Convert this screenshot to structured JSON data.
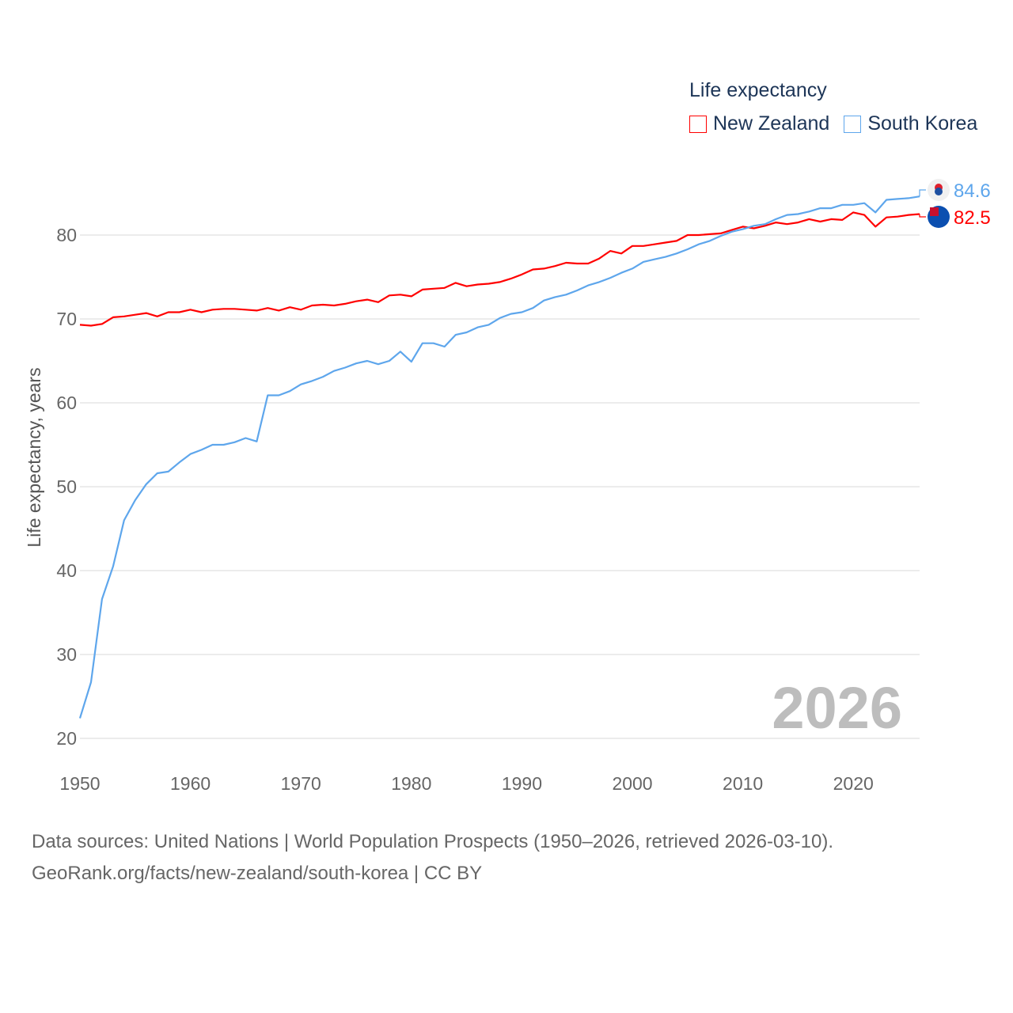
{
  "chart_data": {
    "type": "line",
    "legend_title": "Life expectancy",
    "ylabel": "Life expectancy, years",
    "xlabel": "",
    "xlim": [
      1950,
      2026
    ],
    "ylim": [
      20,
      86
    ],
    "yticks": [
      20,
      30,
      40,
      50,
      60,
      70,
      80
    ],
    "xticks": [
      1950,
      1960,
      1970,
      1980,
      1990,
      2000,
      2010,
      2020
    ],
    "grid": true,
    "legend_position": "top-right",
    "year_watermark": "2026",
    "x_start": 1950,
    "series": [
      {
        "name": "New Zealand",
        "color": "#ff0000",
        "end_label": "82.5",
        "flag": "nz-flag",
        "values": [
          69.3,
          69.2,
          69.4,
          70.2,
          70.3,
          70.5,
          70.7,
          70.3,
          70.8,
          70.8,
          71.1,
          70.8,
          71.1,
          71.2,
          71.2,
          71.1,
          71.0,
          71.3,
          71.0,
          71.4,
          71.1,
          71.6,
          71.7,
          71.6,
          71.8,
          72.1,
          72.3,
          72.0,
          72.8,
          72.9,
          72.7,
          73.5,
          73.6,
          73.7,
          74.3,
          73.9,
          74.1,
          74.2,
          74.4,
          74.8,
          75.3,
          75.9,
          76.0,
          76.3,
          76.7,
          76.6,
          76.6,
          77.2,
          78.1,
          77.8,
          78.7,
          78.7,
          78.9,
          79.1,
          79.3,
          80.0,
          80.0,
          80.1,
          80.2,
          80.6,
          81.0,
          80.8,
          81.1,
          81.5,
          81.3,
          81.5,
          81.9,
          81.6,
          81.9,
          81.8,
          82.7,
          82.4,
          81.0,
          82.1,
          82.2,
          82.4,
          82.5
        ]
      },
      {
        "name": "South Korea",
        "color": "#5ea6ec",
        "end_label": "84.6",
        "flag": "kr-flag",
        "values": [
          22.4,
          26.7,
          36.6,
          40.5,
          46.0,
          48.4,
          50.3,
          51.6,
          51.8,
          52.9,
          53.9,
          54.4,
          55.0,
          55.0,
          55.3,
          55.8,
          55.4,
          60.9,
          60.9,
          61.4,
          62.2,
          62.6,
          63.1,
          63.8,
          64.2,
          64.7,
          65.0,
          64.6,
          65.0,
          66.1,
          64.9,
          67.1,
          67.1,
          66.7,
          68.1,
          68.4,
          69.0,
          69.3,
          70.1,
          70.6,
          70.8,
          71.3,
          72.2,
          72.6,
          72.9,
          73.4,
          74.0,
          74.4,
          74.9,
          75.5,
          76.0,
          76.8,
          77.1,
          77.4,
          77.8,
          78.3,
          78.9,
          79.3,
          79.9,
          80.4,
          80.7,
          81.1,
          81.3,
          81.9,
          82.4,
          82.5,
          82.8,
          83.2,
          83.2,
          83.6,
          83.6,
          83.8,
          82.7,
          84.2,
          84.3,
          84.4,
          84.6
        ]
      }
    ]
  },
  "footer": {
    "line1": "Data sources: United Nations | World Population Prospects (1950–2026, retrieved 2026-03-10).",
    "line2": "GeoRank.org/facts/new-zealand/south-korea | CC BY"
  }
}
